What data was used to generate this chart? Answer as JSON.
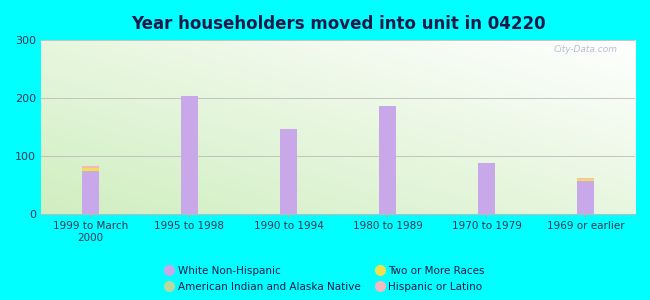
{
  "title": "Year householders moved into unit in 04220",
  "categories": [
    "1999 to March\n2000",
    "1995 to 1998",
    "1990 to 1994",
    "1980 to 1989",
    "1970 to 1979",
    "1969 or earlier"
  ],
  "series": {
    "White Non-Hispanic": [
      75,
      204,
      147,
      187,
      89,
      58
    ],
    "American Indian and Alaska Native": [
      0,
      0,
      0,
      0,
      0,
      0
    ],
    "Two or More Races": [
      5,
      0,
      0,
      0,
      0,
      3
    ],
    "Hispanic or Latino": [
      3,
      0,
      0,
      0,
      0,
      2
    ]
  },
  "colors": {
    "White Non-Hispanic": "#c8a8e8",
    "American Indian and Alaska Native": "#b8d8a0",
    "Two or More Races": "#f0e050",
    "Hispanic or Latino": "#f4b8c0"
  },
  "ylim": [
    0,
    300
  ],
  "yticks": [
    0,
    100,
    200,
    300
  ],
  "outer_background": "#00ffff",
  "title_color": "#1a1a4a",
  "title_fontsize": 12,
  "bar_width": 0.18,
  "watermark": "City-Data.com",
  "legend_order": [
    "White Non-Hispanic",
    "American Indian and Alaska Native",
    "Two or More Races",
    "Hispanic or Latino"
  ],
  "legend_ncol": 2
}
